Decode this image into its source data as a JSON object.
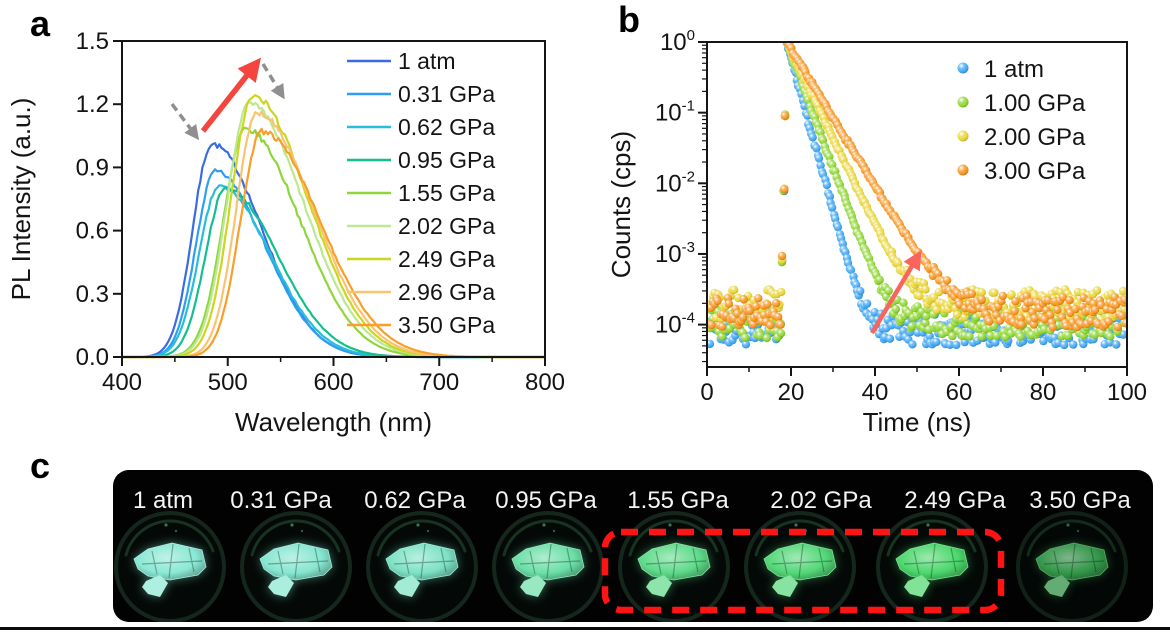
{
  "panels": {
    "a": {
      "letter": "a"
    },
    "b": {
      "letter": "b"
    },
    "c": {
      "letter": "c",
      "photos": [
        {
          "label": "1 atm",
          "flake_color": "#8ae8d4",
          "opacity": 1
        },
        {
          "label": "0.31 GPa",
          "flake_color": "#86e6d0",
          "opacity": 1
        },
        {
          "label": "0.62 GPa",
          "flake_color": "#7de2c4",
          "opacity": 1
        },
        {
          "label": "0.95 GPa",
          "flake_color": "#6cdfa8",
          "opacity": 1
        },
        {
          "label": "1.55 GPa",
          "flake_color": "#5eda89",
          "opacity": 1
        },
        {
          "label": "2.02 GPa",
          "flake_color": "#54d778",
          "opacity": 1
        },
        {
          "label": "2.49 GPa",
          "flake_color": "#4cd76c",
          "opacity": 1
        },
        {
          "label": "3.50 GPa",
          "flake_color": "#3db257",
          "opacity": 0.85
        }
      ],
      "highlight_box": {
        "color": "#ff1414",
        "style": "dashed",
        "around": [
          "1.55 GPa",
          "2.02 GPa",
          "2.49 GPa"
        ]
      }
    }
  },
  "chart_data": [
    {
      "panel": "a",
      "type": "line",
      "title": "",
      "xlabel": "Wavelength (nm)",
      "ylabel": "PL Intensity (a.u.)",
      "xlim": [
        400,
        800
      ],
      "ylim": [
        0,
        1.5
      ],
      "x_tick_labels": [
        "400",
        "500",
        "600",
        "700",
        "800"
      ],
      "y_tick_labels": [
        "0.0",
        "0.3",
        "0.6",
        "0.9",
        "1.2",
        "1.5"
      ],
      "grid": false,
      "legend_position": "top-right",
      "series": [
        {
          "name": "1 atm",
          "color": "#3b6be4",
          "peak_nm": 485,
          "peak_intensity": 1.01,
          "sigma_left_nm": 18,
          "sigma_right_nm": 47
        },
        {
          "name": "0.31 GPa",
          "color": "#2f9ef2",
          "peak_nm": 488,
          "peak_intensity": 0.88,
          "sigma_left_nm": 18,
          "sigma_right_nm": 47
        },
        {
          "name": "0.62 GPa",
          "color": "#28bdd9",
          "peak_nm": 492,
          "peak_intensity": 0.81,
          "sigma_left_nm": 19,
          "sigma_right_nm": 48
        },
        {
          "name": "0.95 GPa",
          "color": "#13bf8e",
          "peak_nm": 498,
          "peak_intensity": 0.8,
          "sigma_left_nm": 19,
          "sigma_right_nm": 49
        },
        {
          "name": "1.55 GPa",
          "color": "#8fd63d",
          "peak_nm": 517,
          "peak_intensity": 1.08,
          "sigma_left_nm": 21,
          "sigma_right_nm": 51
        },
        {
          "name": "2.02 GPa",
          "color": "#bbe890",
          "peak_nm": 520,
          "peak_intensity": 1.2,
          "sigma_left_nm": 21,
          "sigma_right_nm": 52
        },
        {
          "name": "2.49 GPa",
          "color": "#ccd61f",
          "peak_nm": 524,
          "peak_intensity": 1.235,
          "sigma_left_nm": 21,
          "sigma_right_nm": 52
        },
        {
          "name": "2.96 GPa",
          "color": "#f9c371",
          "peak_nm": 528,
          "peak_intensity": 1.16,
          "sigma_left_nm": 20,
          "sigma_right_nm": 53
        },
        {
          "name": "3.50 GPa",
          "color": "#f99e29",
          "peak_nm": 532,
          "peak_intensity": 1.07,
          "sigma_left_nm": 20,
          "sigma_right_nm": 55
        }
      ],
      "annotations": {
        "red_arrow": {
          "direction": "up-right",
          "color": "#f4453e"
        },
        "gray_dashed_arrows": {
          "count": 2,
          "direction": "down-right",
          "color": "#8f8f8f"
        }
      }
    },
    {
      "panel": "b",
      "type": "scatter",
      "title": "",
      "xlabel": "Time (ns)",
      "ylabel": "Counts (cps)",
      "xlim": [
        0,
        100
      ],
      "ylim": [
        0.0001,
        1
      ],
      "y_scale": "log",
      "x_tick_labels": [
        "0",
        "20",
        "40",
        "60",
        "80",
        "100"
      ],
      "y_tick_exponents": [
        "0",
        "-1",
        "-2",
        "-3",
        "-4"
      ],
      "grid": false,
      "legend_position": "top-right",
      "series": [
        {
          "name": "1 atm",
          "color": "#41a7f2",
          "rise_ns": 19,
          "lifetime_ns": 2.0,
          "baseline_cps": 8.5e-05,
          "peak_cps": 1.0
        },
        {
          "name": "1.00 GPa",
          "color": "#8fd633",
          "rise_ns": 19,
          "lifetime_ns": 2.7,
          "baseline_cps": 0.000105,
          "peak_cps": 1.0
        },
        {
          "name": "2.00 GPa",
          "color": "#e9d435",
          "rise_ns": 19,
          "lifetime_ns": 3.5,
          "baseline_cps": 0.00019,
          "peak_cps": 1.0
        },
        {
          "name": "3.00 GPa",
          "color": "#f6941f",
          "rise_ns": 19,
          "lifetime_ns": 4.45,
          "baseline_cps": 0.00015,
          "peak_cps": 1.0
        }
      ],
      "annotations": {
        "red_arrow": {
          "direction": "up-right",
          "color": "#f9655e"
        }
      }
    }
  ]
}
